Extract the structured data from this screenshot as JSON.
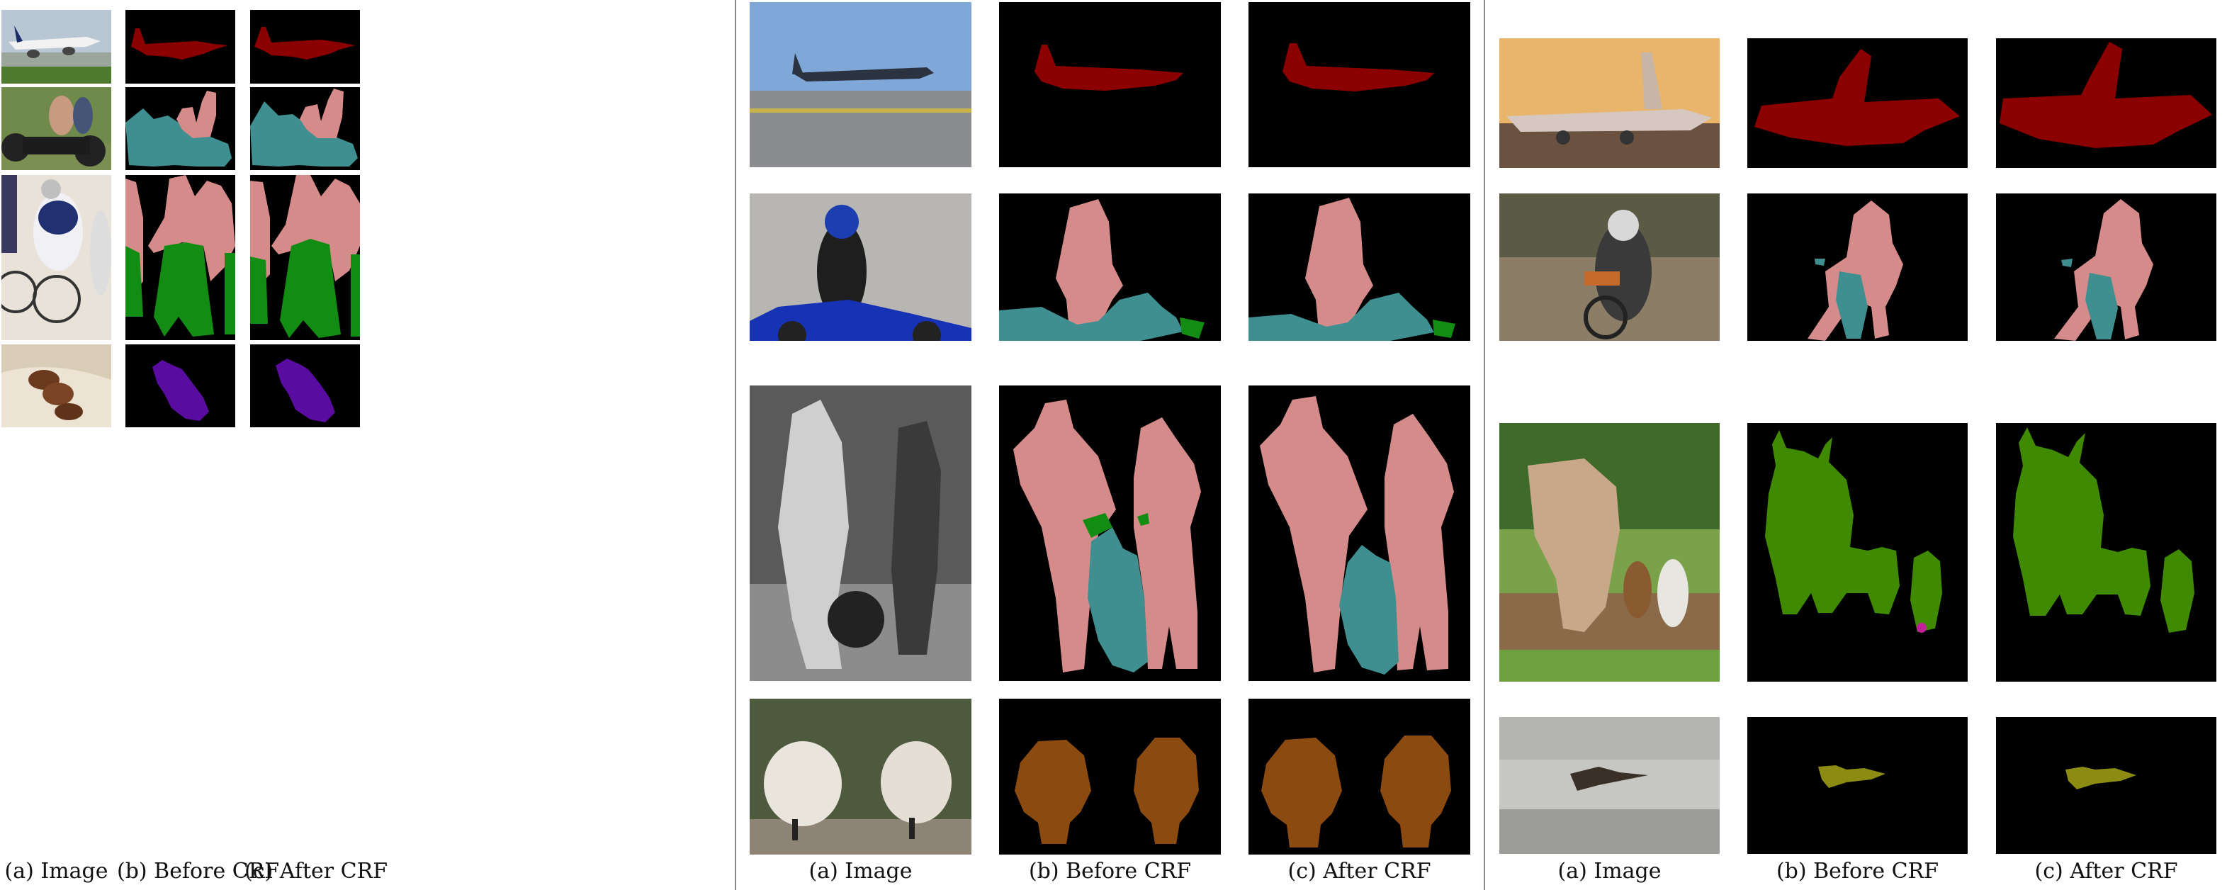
{
  "captions": {
    "image": "(a) Image",
    "before": "(b) Before CRF",
    "after": "(c) After CRF"
  },
  "colors": {
    "background": "#000000",
    "aeroplane": "#8b0000",
    "person": "#d68b8b",
    "motorbike": "#3f8f90",
    "bicycle": "#138c13",
    "dog": "#5a0ca0",
    "sheep": "#8b4a10",
    "cow": "#3f8a00",
    "bird": "#8c8c12",
    "small_artifact": "#c0209a"
  },
  "panels": [
    {
      "rows": [
        {
          "scene": "british airways jet taking off",
          "classes": [
            "aeroplane"
          ]
        },
        {
          "scene": "children on a chopper motorcycle",
          "classes": [
            "person",
            "motorbike"
          ]
        },
        {
          "scene": "track cyclists racing",
          "classes": [
            "person",
            "bicycle"
          ]
        },
        {
          "scene": "puppies on a bed",
          "classes": [
            "dog"
          ]
        }
      ]
    },
    {
      "rows": [
        {
          "scene": "military jet on runway",
          "classes": [
            "aeroplane"
          ]
        },
        {
          "scene": "rider in blue helmet on motorbike",
          "classes": [
            "person",
            "motorbike",
            "bicycle"
          ]
        },
        {
          "scene": "vintage photo of couple with motorbike",
          "classes": [
            "person",
            "motorbike",
            "bicycle"
          ]
        },
        {
          "scene": "two sheep",
          "classes": [
            "sheep"
          ]
        }
      ]
    },
    {
      "rows": [
        {
          "scene": "airliner at sunset",
          "classes": [
            "aeroplane"
          ]
        },
        {
          "scene": "motocross rider",
          "classes": [
            "person",
            "motorbike"
          ]
        },
        {
          "scene": "zebu cows in a field",
          "classes": [
            "cow"
          ]
        },
        {
          "scene": "bird flying over water",
          "classes": [
            "bird"
          ]
        }
      ]
    }
  ]
}
